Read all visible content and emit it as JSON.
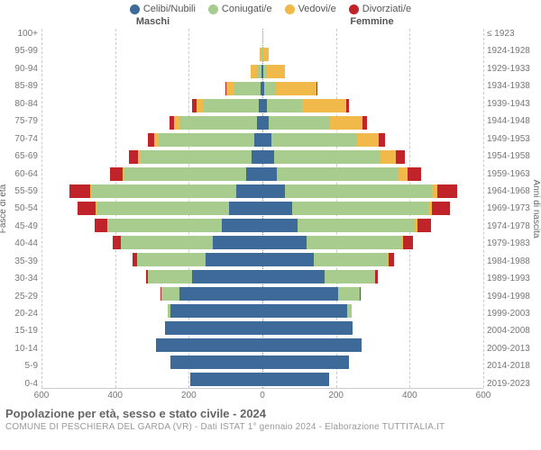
{
  "legend": [
    {
      "label": "Celibi/Nubili",
      "color": "#3d6a98"
    },
    {
      "label": "Coniugati/e",
      "color": "#a7cc8e"
    },
    {
      "label": "Vedovi/e",
      "color": "#f1b94a"
    },
    {
      "label": "Divorziati/e",
      "color": "#c0232a"
    }
  ],
  "gender": {
    "male": "Maschi",
    "female": "Femmine"
  },
  "axis_labels": {
    "left": "Fasce di età",
    "right": "Anni di nascita"
  },
  "title": "Popolazione per età, sesso e stato civile - 2024",
  "subtitle": "COMUNE DI PESCHIERA DEL GARDA (VR) - Dati ISTAT 1° gennaio 2024 - Elaborazione TUTTITALIA.IT",
  "colors": {
    "single": "#3d6a98",
    "married": "#a7cc8e",
    "widowed": "#f1b94a",
    "divorced": "#c0232a",
    "grid": "#cccccc",
    "bg": "#ffffff"
  },
  "chart": {
    "type": "population-pyramid",
    "max": 600,
    "x_ticks": [
      600,
      400,
      200,
      0,
      200,
      400,
      600
    ],
    "segment_order": [
      "single",
      "married",
      "widowed",
      "divorced"
    ],
    "rows": [
      {
        "age": "100+",
        "birth": "≤ 1923",
        "m": [
          0,
          0,
          1,
          0
        ],
        "f": [
          0,
          0,
          3,
          0
        ]
      },
      {
        "age": "95-99",
        "birth": "1924-1928",
        "m": [
          1,
          2,
          4,
          0
        ],
        "f": [
          0,
          3,
          14,
          0
        ]
      },
      {
        "age": "90-94",
        "birth": "1929-1933",
        "m": [
          3,
          12,
          16,
          0
        ],
        "f": [
          2,
          8,
          52,
          0
        ]
      },
      {
        "age": "85-89",
        "birth": "1934-1938",
        "m": [
          5,
          70,
          22,
          3
        ],
        "f": [
          5,
          32,
          110,
          3
        ]
      },
      {
        "age": "80-84",
        "birth": "1939-1943",
        "m": [
          10,
          150,
          20,
          10
        ],
        "f": [
          12,
          95,
          120,
          8
        ]
      },
      {
        "age": "75-79",
        "birth": "1944-1948",
        "m": [
          15,
          210,
          15,
          12
        ],
        "f": [
          18,
          165,
          90,
          10
        ]
      },
      {
        "age": "70-74",
        "birth": "1949-1953",
        "m": [
          22,
          260,
          12,
          18
        ],
        "f": [
          25,
          230,
          60,
          18
        ]
      },
      {
        "age": "65-69",
        "birth": "1954-1958",
        "m": [
          30,
          300,
          8,
          25
        ],
        "f": [
          32,
          290,
          40,
          25
        ]
      },
      {
        "age": "60-64",
        "birth": "1959-1963",
        "m": [
          45,
          330,
          5,
          35
        ],
        "f": [
          40,
          330,
          25,
          35
        ]
      },
      {
        "age": "55-59",
        "birth": "1964-1968",
        "m": [
          70,
          395,
          3,
          55
        ],
        "f": [
          60,
          400,
          15,
          55
        ]
      },
      {
        "age": "50-54",
        "birth": "1969-1973",
        "m": [
          90,
          360,
          2,
          50
        ],
        "f": [
          80,
          370,
          10,
          50
        ]
      },
      {
        "age": "45-49",
        "birth": "1974-1978",
        "m": [
          110,
          310,
          1,
          35
        ],
        "f": [
          95,
          320,
          6,
          38
        ]
      },
      {
        "age": "40-44",
        "birth": "1979-1983",
        "m": [
          135,
          250,
          0,
          22
        ],
        "f": [
          120,
          260,
          3,
          25
        ]
      },
      {
        "age": "35-39",
        "birth": "1984-1988",
        "m": [
          155,
          185,
          0,
          12
        ],
        "f": [
          140,
          200,
          2,
          15
        ]
      },
      {
        "age": "30-34",
        "birth": "1989-1993",
        "m": [
          190,
          120,
          0,
          6
        ],
        "f": [
          170,
          135,
          0,
          8
        ]
      },
      {
        "age": "25-29",
        "birth": "1994-1998",
        "m": [
          225,
          50,
          0,
          2
        ],
        "f": [
          205,
          60,
          0,
          3
        ]
      },
      {
        "age": "20-24",
        "birth": "1999-2003",
        "m": [
          250,
          8,
          0,
          0
        ],
        "f": [
          230,
          12,
          0,
          0
        ]
      },
      {
        "age": "15-19",
        "birth": "2004-2008",
        "m": [
          265,
          0,
          0,
          0
        ],
        "f": [
          245,
          0,
          0,
          0
        ]
      },
      {
        "age": "10-14",
        "birth": "2009-2013",
        "m": [
          290,
          0,
          0,
          0
        ],
        "f": [
          270,
          0,
          0,
          0
        ]
      },
      {
        "age": "5-9",
        "birth": "2014-2018",
        "m": [
          250,
          0,
          0,
          0
        ],
        "f": [
          235,
          0,
          0,
          0
        ]
      },
      {
        "age": "0-4",
        "birth": "2019-2023",
        "m": [
          195,
          0,
          0,
          0
        ],
        "f": [
          180,
          0,
          0,
          0
        ]
      }
    ]
  }
}
